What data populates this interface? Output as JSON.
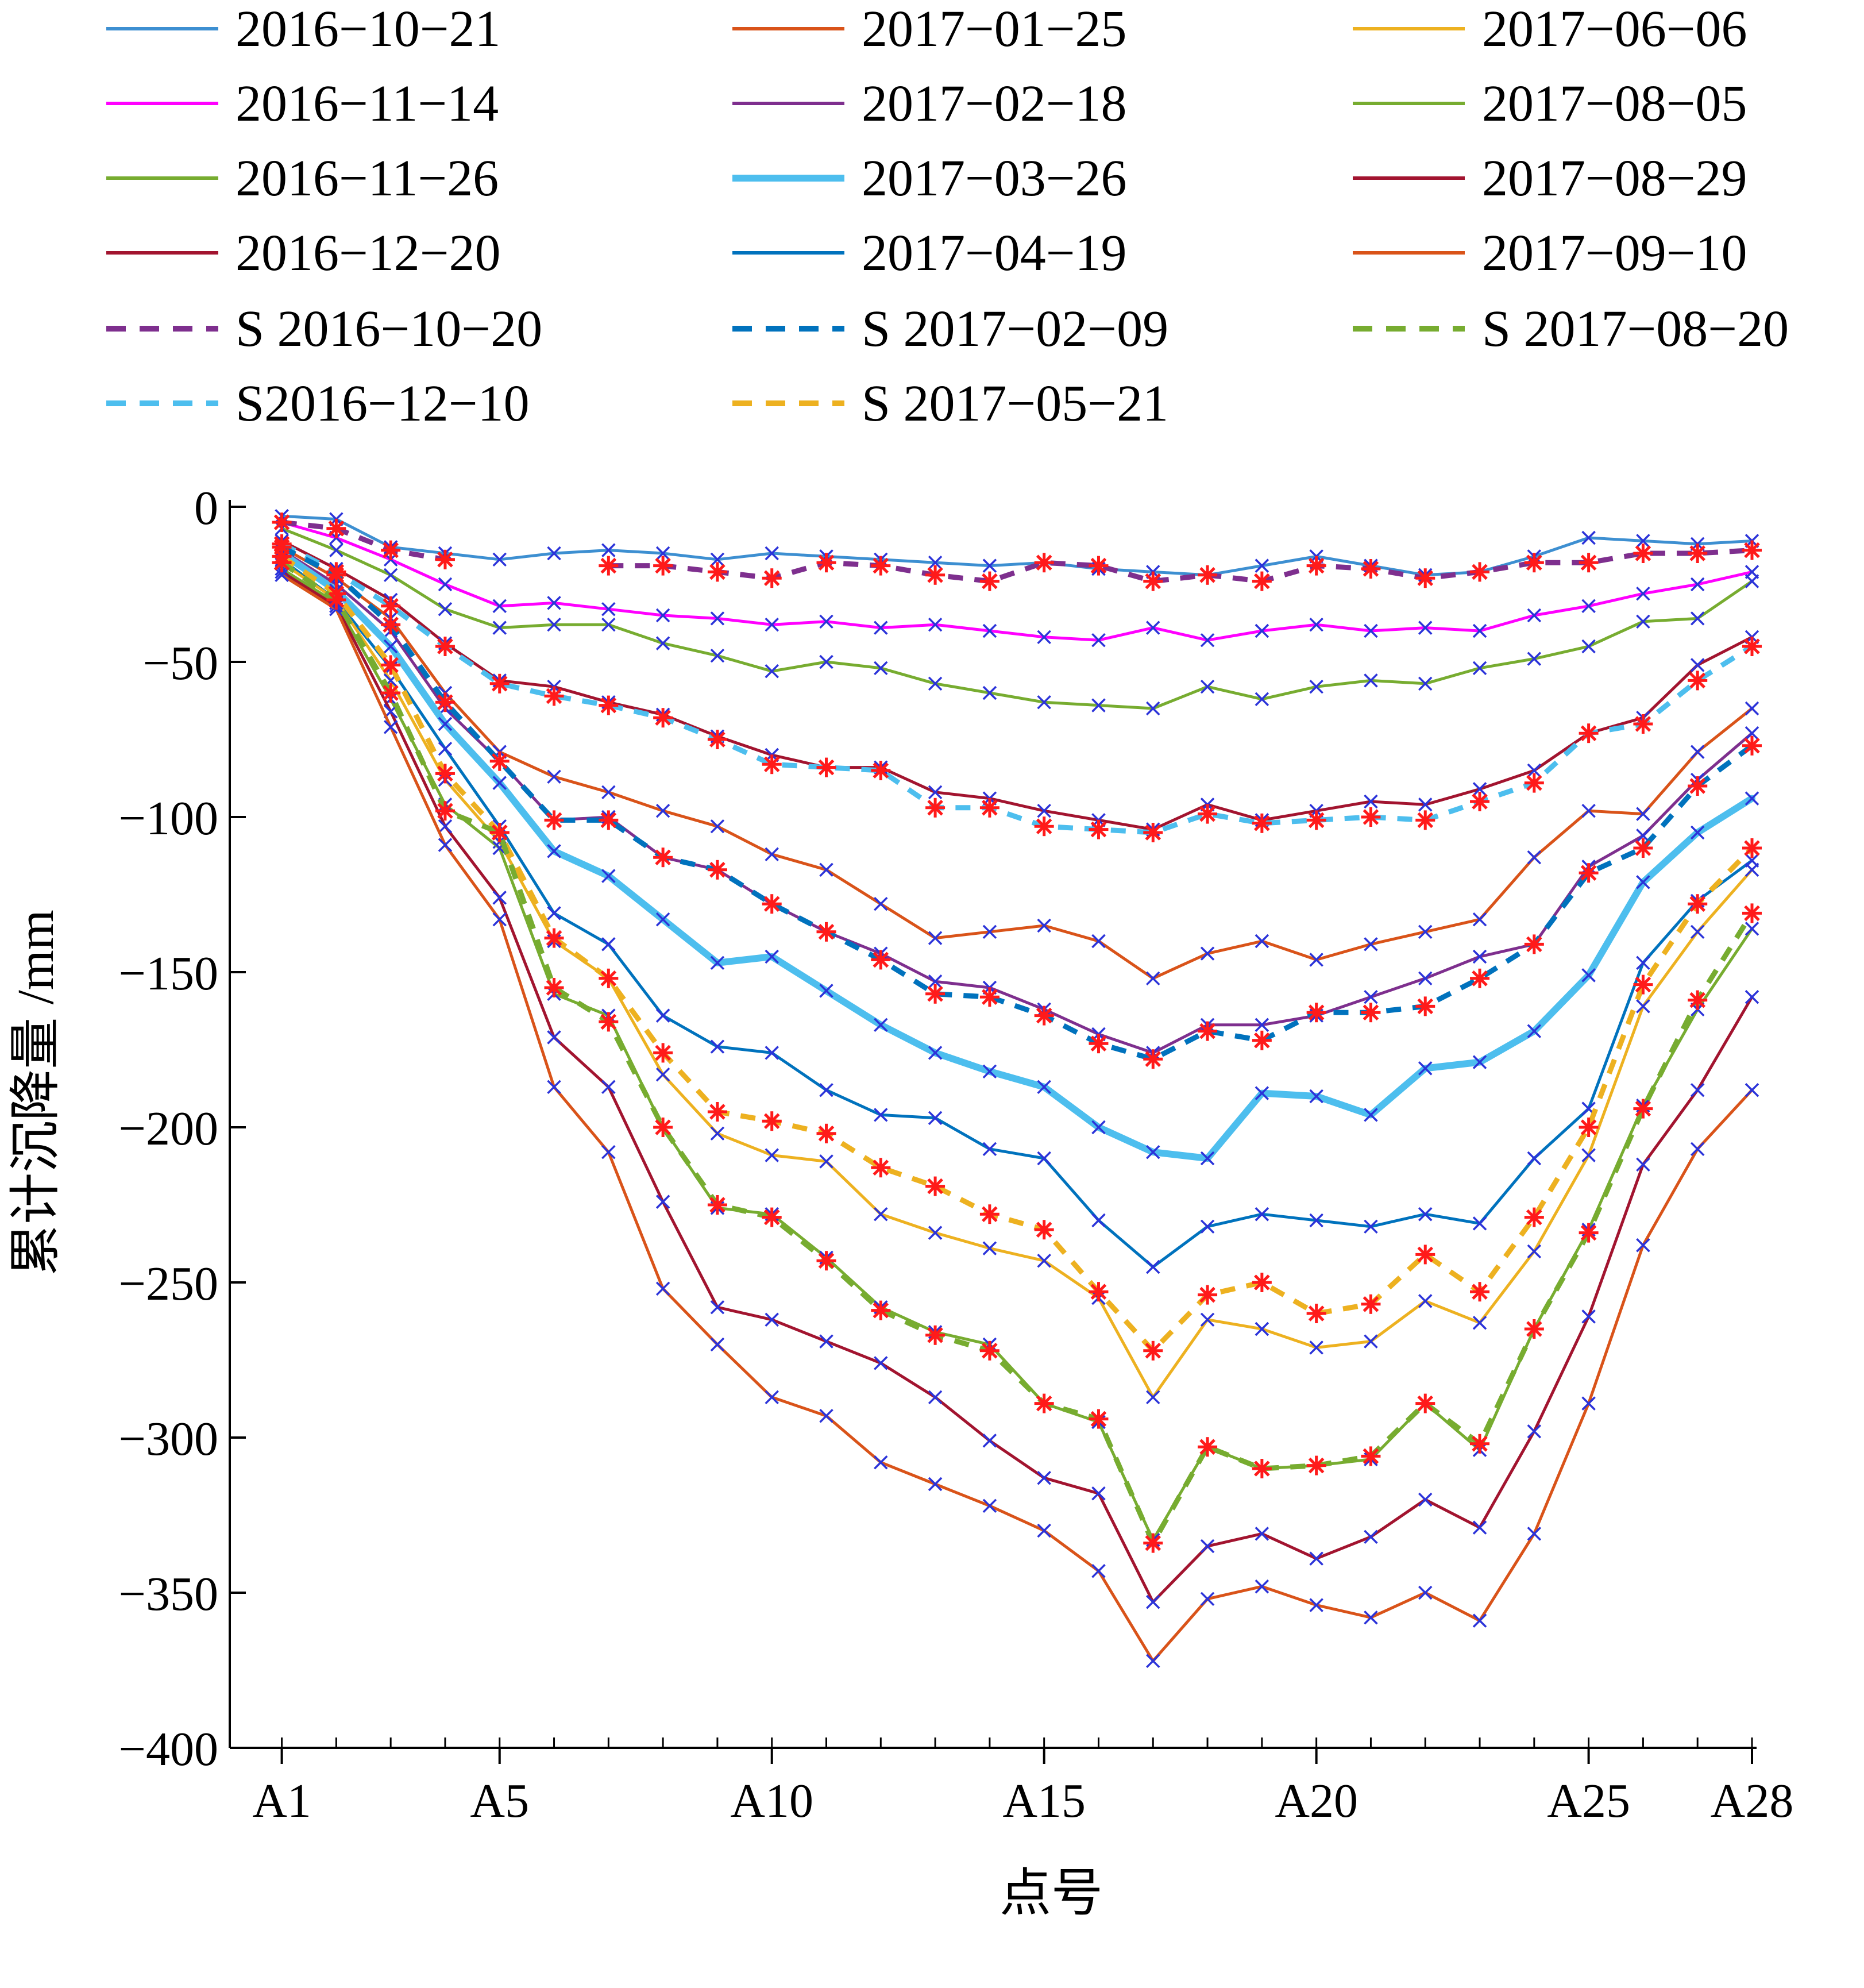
{
  "chart_data": {
    "type": "line",
    "xlabel": "点号",
    "ylabel": "累计沉降量 /mm",
    "ylim": [
      -400,
      0
    ],
    "yticks": [
      0,
      -50,
      -100,
      -150,
      -200,
      -250,
      -300,
      -350,
      -400
    ],
    "xticks": [
      {
        "pos": 1,
        "label": "A1"
      },
      {
        "pos": 5,
        "label": "A5"
      },
      {
        "pos": 10,
        "label": "A10"
      },
      {
        "pos": 15,
        "label": "A15"
      },
      {
        "pos": 20,
        "label": "A20"
      },
      {
        "pos": 25,
        "label": "A25"
      },
      {
        "pos": 28,
        "label": "A28"
      }
    ],
    "x": [
      1,
      2,
      3,
      4,
      5,
      6,
      7,
      8,
      9,
      10,
      11,
      12,
      13,
      14,
      15,
      16,
      17,
      18,
      19,
      20,
      21,
      22,
      23,
      24,
      25,
      26,
      27,
      28
    ],
    "grid": false,
    "legend_position": "top",
    "series": [
      {
        "name": "2016-10-21",
        "color": "#3d8fd1",
        "style": "solid",
        "width": 5,
        "marker": "x",
        "values": [
          -3,
          -4,
          -13,
          -15,
          -17,
          -15,
          -14,
          -15,
          -17,
          -15,
          -16,
          -17,
          -18,
          -19,
          -18,
          -20,
          -21,
          -22,
          -19,
          -16,
          -19,
          -22,
          -21,
          -16,
          -10,
          -11,
          -12,
          -11
        ]
      },
      {
        "name": "2016-11-14",
        "color": "#ff00ff",
        "style": "solid",
        "width": 5,
        "marker": "x",
        "values": [
          -5,
          -10,
          -17,
          -25,
          -32,
          -31,
          -33,
          -35,
          -36,
          -38,
          -37,
          -39,
          -38,
          -40,
          -42,
          -43,
          -39,
          -43,
          -40,
          -38,
          -40,
          -39,
          -40,
          -35,
          -32,
          -28,
          -25,
          -21
        ]
      },
      {
        "name": "2016-11-26",
        "color": "#77ac30",
        "style": "solid",
        "width": 5,
        "marker": "x",
        "values": [
          -7,
          -14,
          -22,
          -33,
          -39,
          -38,
          -38,
          -44,
          -48,
          -53,
          -50,
          -52,
          -57,
          -60,
          -63,
          -64,
          -65,
          -58,
          -62,
          -58,
          -56,
          -57,
          -52,
          -49,
          -45,
          -37,
          -36,
          -24
        ]
      },
      {
        "name": "2016-12-20",
        "color": "#a2142f",
        "style": "solid",
        "width": 5,
        "marker": "x",
        "values": [
          -11,
          -20,
          -30,
          -44,
          -56,
          -58,
          -63,
          -67,
          -74,
          -80,
          -84,
          -84,
          -92,
          -94,
          -98,
          -101,
          -104,
          -96,
          -101,
          -98,
          -95,
          -96,
          -91,
          -85,
          -73,
          -68,
          -51,
          -42
        ]
      },
      {
        "name": "2017-01-25",
        "color": "#d95319",
        "style": "solid",
        "width": 5,
        "marker": "x",
        "values": [
          -13,
          -23,
          -36,
          -60,
          -79,
          -87,
          -92,
          -98,
          -103,
          -112,
          -117,
          -128,
          -139,
          -137,
          -135,
          -140,
          -152,
          -144,
          -140,
          -146,
          -141,
          -137,
          -133,
          -113,
          -98,
          -99,
          -79,
          -65
        ]
      },
      {
        "name": "2017-02-18",
        "color": "#7e2f8e",
        "style": "solid",
        "width": 5,
        "marker": "x",
        "values": [
          -14,
          -25,
          -40,
          -65,
          -82,
          -101,
          -100,
          -113,
          -117,
          -128,
          -137,
          -144,
          -153,
          -155,
          -162,
          -170,
          -176,
          -167,
          -167,
          -164,
          -158,
          -152,
          -145,
          -141,
          -116,
          -106,
          -88,
          -73
        ]
      },
      {
        "name": "2017-03-26",
        "color": "#4dbeee",
        "style": "solid",
        "width": 12,
        "marker": "x",
        "values": [
          -15,
          -27,
          -45,
          -70,
          -89,
          -111,
          -119,
          -133,
          -147,
          -145,
          -156,
          -167,
          -176,
          -182,
          -187,
          -200,
          -208,
          -210,
          -189,
          -190,
          -196,
          -181,
          -179,
          -169,
          -151,
          -121,
          -105,
          -94
        ]
      },
      {
        "name": "2017-04-19",
        "color": "#0072bd",
        "style": "solid",
        "width": 5,
        "marker": "x",
        "values": [
          -17,
          -30,
          -52,
          -78,
          -103,
          -131,
          -141,
          -164,
          -174,
          -176,
          -188,
          -196,
          -197,
          -207,
          -210,
          -230,
          -245,
          -232,
          -228,
          -230,
          -232,
          -228,
          -231,
          -210,
          -194,
          -147,
          -127,
          -114
        ]
      },
      {
        "name": "2017-06-06",
        "color": "#edb120",
        "style": "solid",
        "width": 5,
        "marker": "x",
        "values": [
          -18,
          -30,
          -56,
          -88,
          -108,
          -140,
          -152,
          -183,
          -202,
          -209,
          -211,
          -228,
          -234,
          -239,
          -243,
          -255,
          -287,
          -262,
          -265,
          -271,
          -269,
          -256,
          -263,
          -240,
          -209,
          -161,
          -137,
          -117
        ]
      },
      {
        "name": "2017-08-05",
        "color": "#77ac30",
        "style": "solid",
        "width": 5,
        "marker": "x",
        "values": [
          -20,
          -31,
          -62,
          -96,
          -110,
          -157,
          -164,
          -200,
          -226,
          -228,
          -242,
          -258,
          -266,
          -270,
          -289,
          -295,
          -333,
          -303,
          -310,
          -309,
          -307,
          -289,
          -304,
          -265,
          -233,
          -193,
          -162,
          -136
        ]
      },
      {
        "name": "2017-08-29",
        "color": "#a2142f",
        "style": "solid",
        "width": 5,
        "marker": "x",
        "values": [
          -21,
          -32,
          -66,
          -103,
          -126,
          -171,
          -187,
          -224,
          -258,
          -262,
          -269,
          -276,
          -287,
          -301,
          -313,
          -318,
          -353,
          -335,
          -331,
          -339,
          -332,
          -320,
          -329,
          -298,
          -261,
          -212,
          -188,
          -158
        ]
      },
      {
        "name": "2017-09-10",
        "color": "#d95319",
        "style": "solid",
        "width": 5,
        "marker": "x",
        "values": [
          -22,
          -33,
          -71,
          -109,
          -133,
          -187,
          -208,
          -252,
          -270,
          -287,
          -293,
          -308,
          -315,
          -322,
          -330,
          -343,
          -372,
          -352,
          -348,
          -354,
          -358,
          -350,
          -359,
          -331,
          -289,
          -238,
          -207,
          -188
        ]
      },
      {
        "name": "S 2016-10-20",
        "color": "#7e2f8e",
        "style": "dashed",
        "width": 9,
        "marker": "star",
        "values": [
          -5,
          -7,
          -14,
          -17,
          null,
          null,
          -19,
          -19,
          -21,
          -23,
          -18,
          -19,
          -22,
          -24,
          -18,
          -19,
          -24,
          -22,
          -24,
          -19,
          -20,
          -23,
          -21,
          -18,
          -18,
          -15,
          -15,
          -14
        ]
      },
      {
        "name": "S2016-12-10",
        "color": "#4dbeee",
        "style": "dashed",
        "width": 9,
        "marker": "star",
        "values": [
          -12,
          -21,
          -32,
          -45,
          -57,
          -61,
          -64,
          -68,
          -75,
          -83,
          -84,
          -85,
          -97,
          -97,
          -103,
          -104,
          -105,
          -99,
          -102,
          -101,
          -100,
          -101,
          -95,
          -89,
          -73,
          -70,
          -56,
          -45
        ]
      },
      {
        "name": "S 2017-02-09",
        "color": "#0072bd",
        "style": "dashed",
        "width": 9,
        "marker": "star",
        "values": [
          -13,
          -22,
          -38,
          -63,
          -82,
          -101,
          -101,
          -113,
          -117,
          -128,
          -137,
          -146,
          -157,
          -158,
          -164,
          -173,
          -178,
          -169,
          -172,
          -163,
          -163,
          -161,
          -152,
          -141,
          -118,
          -110,
          -90,
          -77
        ]
      },
      {
        "name": "S 2017-05-21",
        "color": "#edb120",
        "style": "dashed",
        "width": 9,
        "marker": "star",
        "values": [
          -16,
          -28,
          -51,
          -86,
          -105,
          -139,
          -152,
          -176,
          -195,
          -198,
          -202,
          -213,
          -219,
          -228,
          -233,
          -253,
          -272,
          -254,
          -250,
          -260,
          -257,
          -241,
          -253,
          -229,
          -200,
          -154,
          -128,
          -110
        ]
      },
      {
        "name": "S 2017-08-20",
        "color": "#77ac30",
        "style": "dashed",
        "width": 9,
        "marker": "star",
        "values": [
          -18,
          -30,
          -60,
          -98,
          -105,
          -155,
          -166,
          -200,
          -225,
          -229,
          -243,
          -259,
          -267,
          -272,
          -289,
          -294,
          -334,
          -303,
          -310,
          -309,
          -306,
          -289,
          -302,
          -265,
          -234,
          -194,
          -159,
          -131
        ]
      }
    ]
  }
}
